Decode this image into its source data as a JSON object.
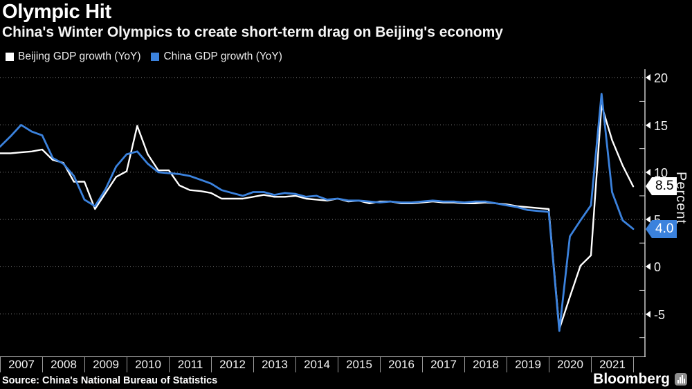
{
  "header": {
    "title": "Olympic Hit",
    "subtitle": "China's Winter Olympics to create short-term drag on Beijing's economy"
  },
  "legend": {
    "items": [
      {
        "label": "Beijing GDP growth (YoY)",
        "color": "#ffffff"
      },
      {
        "label": "China GDP growth (YoY)",
        "color": "#3b82dd"
      }
    ]
  },
  "chart_data": {
    "type": "line",
    "title": "Olympic Hit",
    "subtitle": "China's Winter Olympics to create short-term drag on Beijing's economy",
    "x_years": [
      "2007",
      "2008",
      "2009",
      "2010",
      "2011",
      "2012",
      "2013",
      "2014",
      "2015",
      "2016",
      "2017",
      "2018",
      "2019",
      "2020",
      "2021"
    ],
    "x_frequency": "quarterly",
    "x_start": "2006 Q4",
    "x_end": "2021 Q4",
    "ylabel": "Percent",
    "ylim": [
      -9.5,
      20.9
    ],
    "y_ticks": [
      20,
      15,
      10,
      5,
      0,
      -5
    ],
    "y_minor_ticks": [
      17.5,
      12.5,
      7.5,
      2.5,
      -2.5,
      -7.5
    ],
    "grid": "horizontal-dotted",
    "legend_position": "top-left",
    "background": "#000000",
    "series": [
      {
        "name": "Beijing GDP growth (YoY)",
        "color": "#ffffff",
        "end_label": "8.5",
        "values": [
          12.0,
          12.0,
          12.1,
          12.2,
          12.4,
          11.3,
          11.0,
          9.0,
          9.0,
          6.1,
          7.8,
          9.5,
          10.1,
          14.9,
          11.9,
          10.2,
          10.2,
          8.6,
          8.1,
          8.0,
          7.8,
          7.2,
          7.2,
          7.2,
          7.4,
          7.6,
          7.4,
          7.4,
          7.5,
          7.2,
          7.1,
          7.0,
          7.2,
          6.9,
          7.0,
          6.7,
          6.9,
          6.9,
          6.7,
          6.7,
          6.8,
          6.9,
          6.8,
          6.8,
          6.7,
          6.7,
          6.8,
          6.7,
          6.6,
          6.4,
          6.3,
          6.2,
          6.1,
          -6.6,
          -3.2,
          0.1,
          1.2,
          17.1,
          13.4,
          10.7,
          8.5
        ]
      },
      {
        "name": "China GDP growth (YoY)",
        "color": "#3b82dd",
        "end_label": "4.0",
        "values": [
          12.7,
          13.8,
          15.0,
          14.3,
          13.9,
          11.5,
          10.9,
          9.6,
          7.1,
          6.4,
          8.2,
          10.6,
          11.9,
          12.2,
          10.9,
          10.0,
          9.9,
          9.8,
          9.6,
          9.2,
          8.8,
          8.1,
          7.8,
          7.5,
          7.9,
          7.9,
          7.6,
          7.8,
          7.7,
          7.4,
          7.5,
          7.1,
          7.2,
          7.0,
          7.0,
          6.9,
          6.8,
          6.9,
          6.8,
          6.8,
          6.9,
          7.0,
          6.9,
          6.9,
          6.8,
          6.9,
          6.9,
          6.7,
          6.5,
          6.3,
          6.0,
          5.9,
          5.8,
          -6.8,
          3.2,
          4.9,
          6.5,
          18.3,
          7.9,
          4.9,
          4.0
        ]
      }
    ]
  },
  "footer": {
    "source": "Source: China's National Bureau of Statistics",
    "brand": "Bloomberg"
  }
}
